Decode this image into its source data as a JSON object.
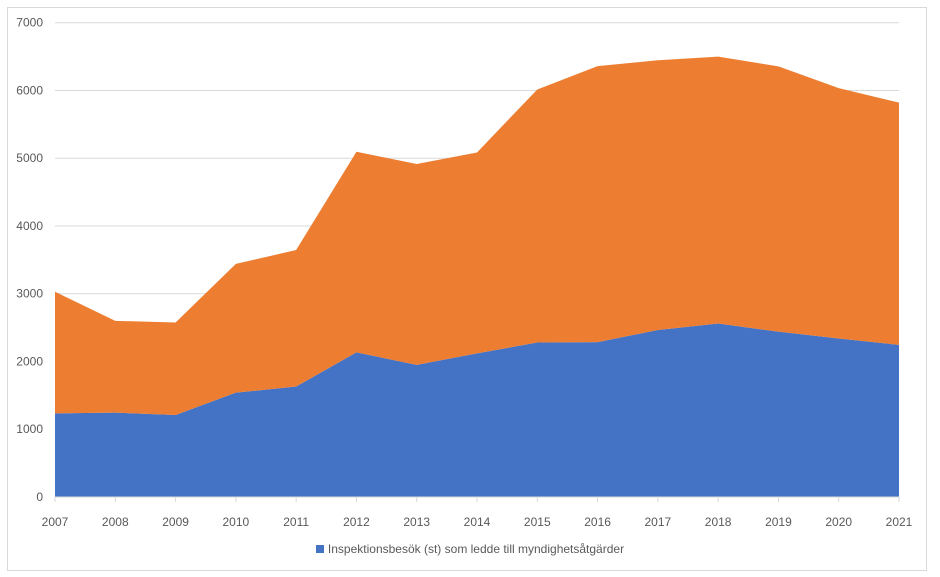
{
  "chart_data": {
    "type": "area",
    "stacked": true,
    "title": "",
    "xlabel": "",
    "ylabel": "",
    "categories": [
      "2007",
      "2008",
      "2009",
      "2010",
      "2011",
      "2012",
      "2013",
      "2014",
      "2015",
      "2016",
      "2017",
      "2018",
      "2019",
      "2020",
      "2021"
    ],
    "ylim": [
      0,
      7000
    ],
    "yticks": [
      "0",
      "1000",
      "2000",
      "3000",
      "4000",
      "5000",
      "6000",
      "7000"
    ],
    "grid": true,
    "legend_position": "bottom",
    "series": [
      {
        "name": "Inspektionsbesök (st) som ledde till myndighetsåtgärder",
        "color": "#4472c4",
        "values": [
          1235,
          1245,
          1210,
          1540,
          1630,
          2135,
          1950,
          2120,
          2280,
          2285,
          2465,
          2560,
          2440,
          2340,
          2245
        ]
      },
      {
        "name": "",
        "color": "#ed7d31",
        "values": [
          1795,
          1355,
          1365,
          1900,
          2015,
          2960,
          2965,
          2965,
          3735,
          4075,
          3980,
          3940,
          3915,
          3695,
          3575
        ]
      }
    ]
  }
}
